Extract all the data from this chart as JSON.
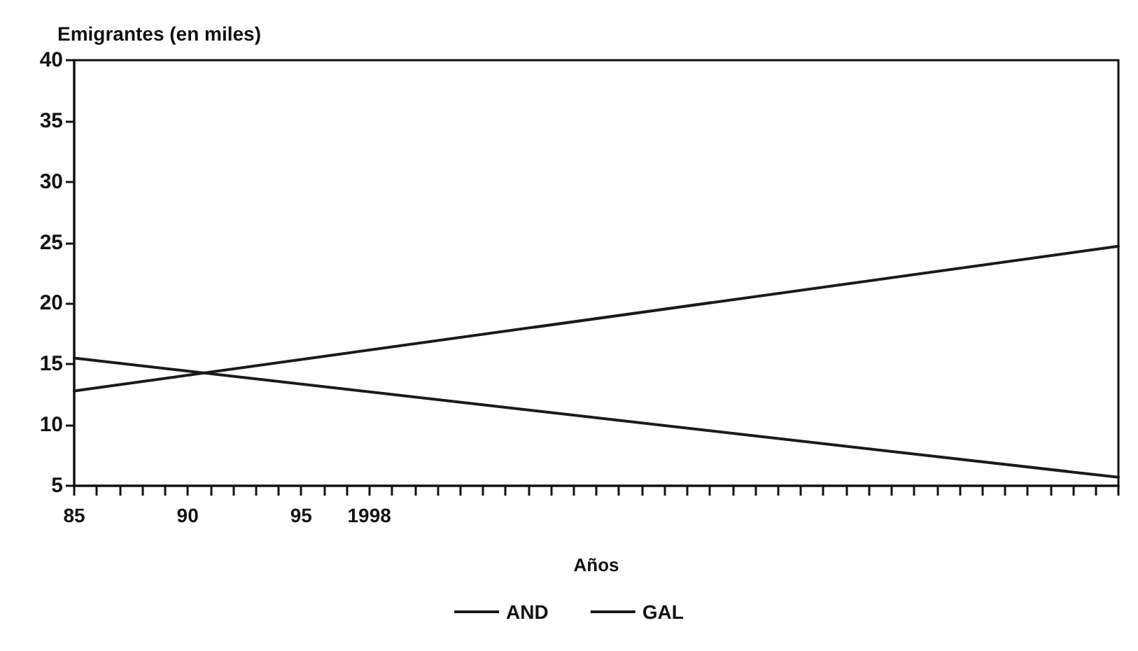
{
  "chart_data": {
    "type": "line",
    "ylabel": "Emigrantes (en miles)",
    "xlabel": "Años",
    "xlim": [
      1985,
      2031
    ],
    "xticks": [
      {
        "value": 1985,
        "label": "85"
      },
      {
        "value": 1986,
        "label": null
      },
      {
        "value": 1987,
        "label": null
      },
      {
        "value": 1988,
        "label": null
      },
      {
        "value": 1989,
        "label": null
      },
      {
        "value": 1990,
        "label": "90"
      },
      {
        "value": 1991,
        "label": null
      },
      {
        "value": 1992,
        "label": null
      },
      {
        "value": 1993,
        "label": null
      },
      {
        "value": 1994,
        "label": null
      },
      {
        "value": 1995,
        "label": "95"
      },
      {
        "value": 1996,
        "label": null
      },
      {
        "value": 1997,
        "label": null
      },
      1998,
      {
        "value": 1999,
        "label": null
      },
      {
        "value": 2000,
        "label": null
      },
      {
        "value": 2001,
        "label": null
      },
      {
        "value": 2002,
        "label": null
      },
      {
        "value": 2003,
        "label": null
      },
      {
        "value": 2004,
        "label": null
      },
      {
        "value": 2005,
        "label": null
      },
      {
        "value": 2006,
        "label": null
      },
      {
        "value": 2007,
        "label": null
      },
      {
        "value": 2008,
        "label": null
      },
      {
        "value": 2009,
        "label": null
      },
      {
        "value": 2010,
        "label": null
      },
      {
        "value": 2011,
        "label": null
      },
      {
        "value": 2012,
        "label": null
      },
      {
        "value": 2013,
        "label": null
      },
      {
        "value": 2014,
        "label": null
      },
      {
        "value": 2015,
        "label": null
      },
      {
        "value": 2016,
        "label": null
      },
      {
        "value": 2017,
        "label": null
      },
      {
        "value": 2018,
        "label": null
      },
      {
        "value": 2019,
        "label": null
      },
      {
        "value": 2020,
        "label": null
      },
      {
        "value": 2021,
        "label": null
      },
      {
        "value": 2022,
        "label": null
      },
      {
        "value": 2023,
        "label": null
      },
      {
        "value": 2024,
        "label": null
      },
      {
        "value": 2025,
        "label": null
      },
      {
        "value": 2026,
        "label": null
      },
      {
        "value": 2027,
        "label": null
      },
      {
        "value": 2028,
        "label": null
      },
      {
        "value": 2029,
        "label": null
      },
      {
        "value": 2030,
        "label": null
      },
      {
        "value": 2031,
        "label": null
      }
    ],
    "ylim": [
      5,
      40
    ],
    "yticks": [
      5,
      10,
      15,
      20,
      25,
      30,
      35,
      40
    ],
    "grid": false,
    "legend": "bottom",
    "marker": "none",
    "line_style": "solid",
    "x": [
      1985,
      2031
    ],
    "series": [
      {
        "name": "AND",
        "color": "#1a1a1a",
        "values": [
          15.5,
          5.7
        ]
      },
      {
        "name": "GAL",
        "color": "#1a1a1a",
        "values": [
          12.8,
          24.7
        ]
      }
    ]
  }
}
